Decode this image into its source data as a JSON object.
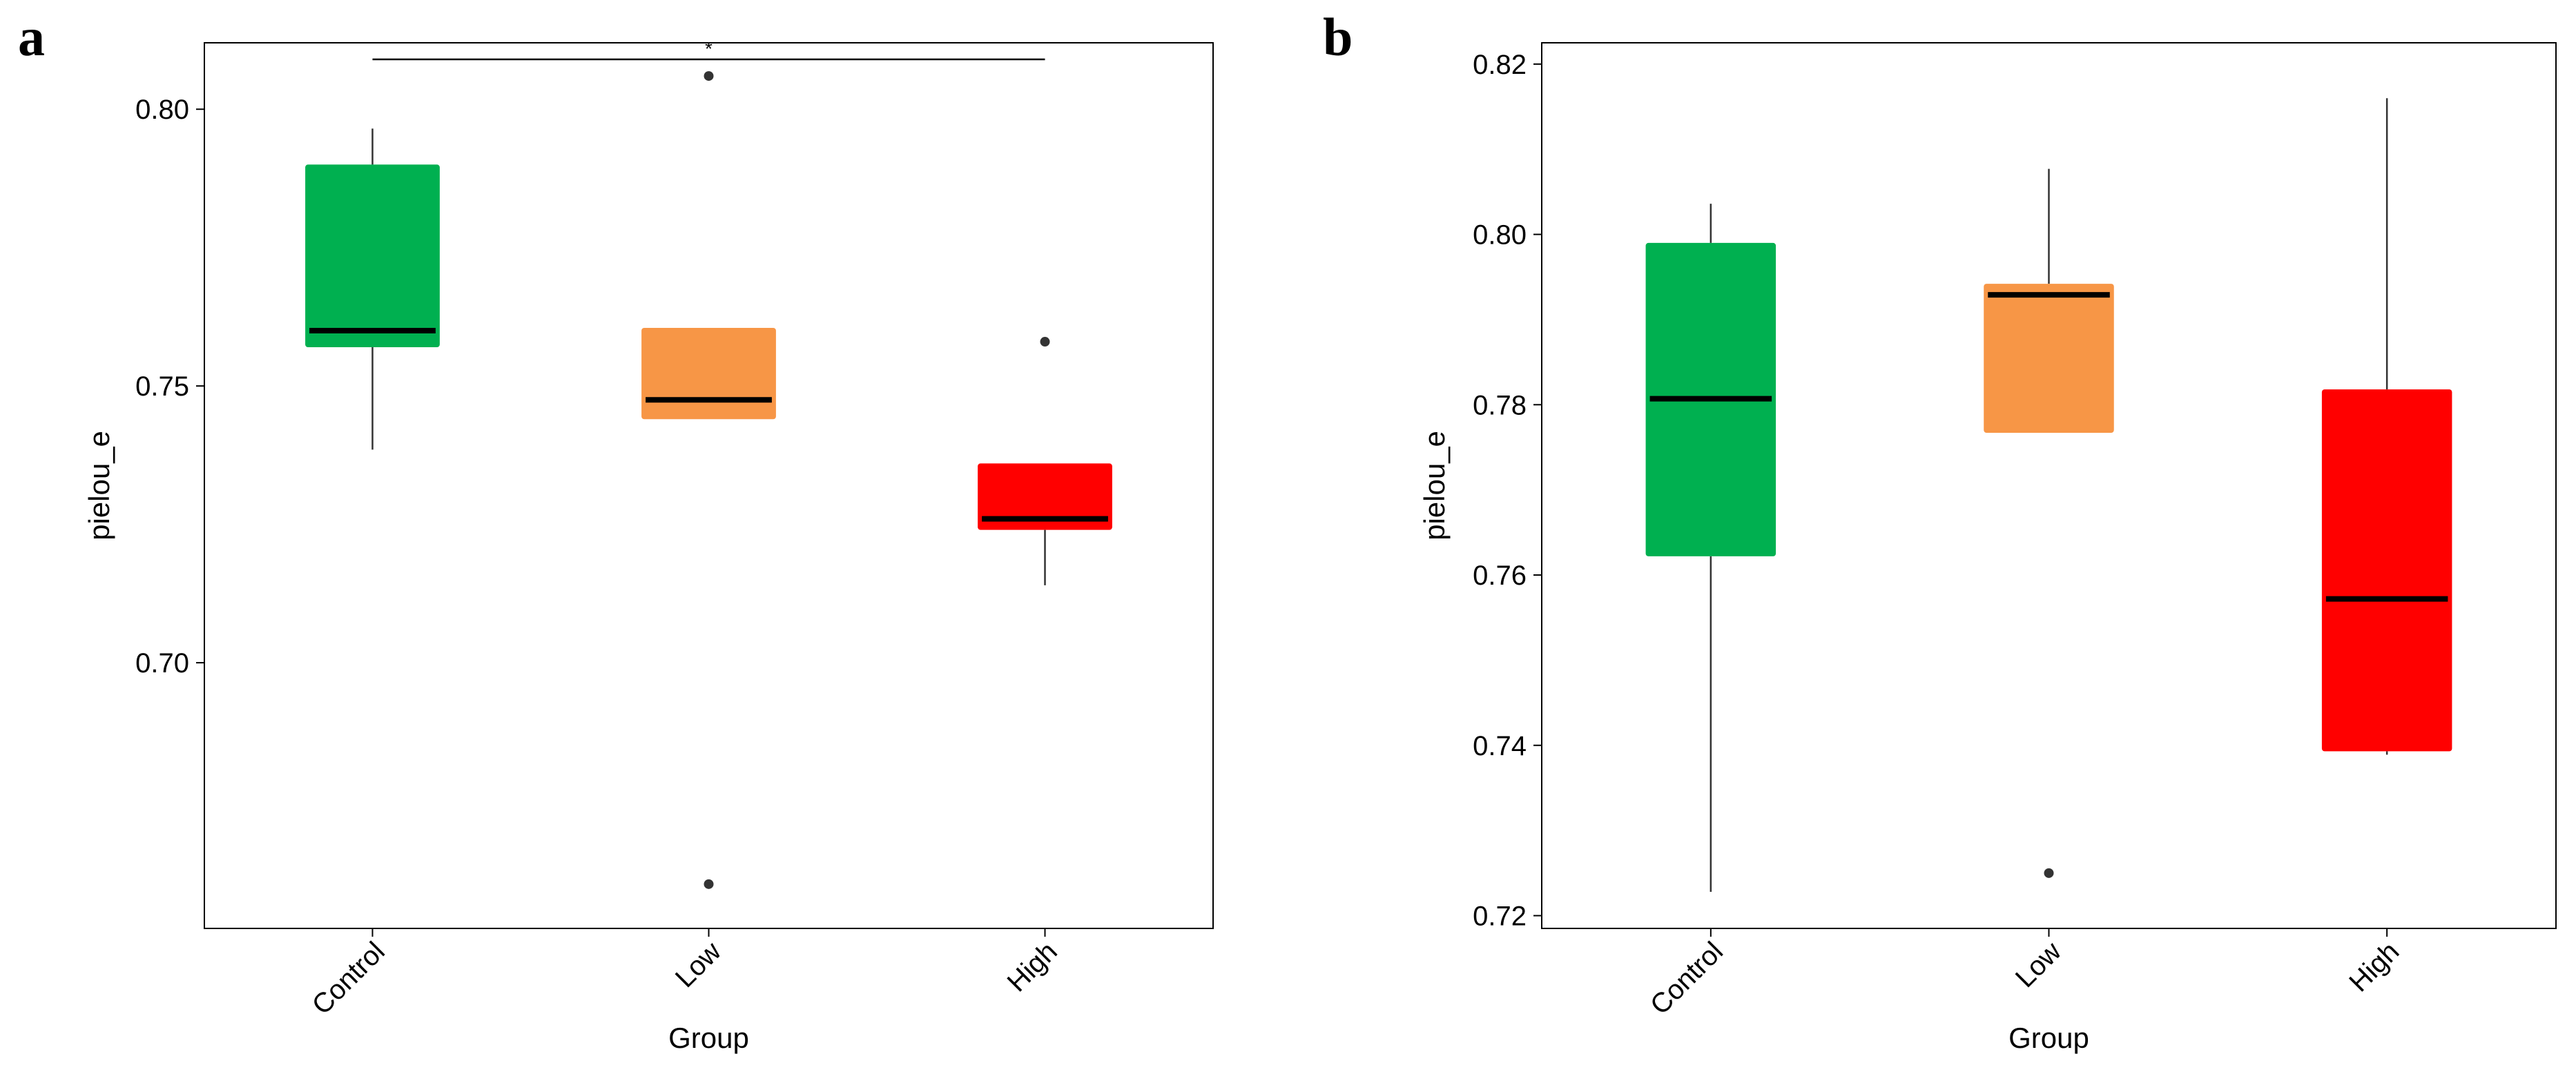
{
  "chart_data": [
    {
      "type": "box",
      "panel_label": "a",
      "xlabel": "Group",
      "ylabel": "pielou_e",
      "categories": [
        "Control",
        "Low",
        "High"
      ],
      "ylim": [
        0.652,
        0.812
      ],
      "yticks": [
        0.7,
        0.75,
        0.8
      ],
      "ytick_labels": [
        "0.70",
        "0.75",
        "0.80"
      ],
      "grid": false,
      "boxes": [
        {
          "group": "Control",
          "color": "#00B050",
          "whisker_low": 0.7385,
          "q1": 0.757,
          "median": 0.76,
          "q3": 0.79,
          "whisker_high": 0.7965,
          "outliers": []
        },
        {
          "group": "Low",
          "color": "#F79646",
          "whisker_low": 0.744,
          "q1": 0.744,
          "median": 0.7475,
          "q3": 0.7605,
          "whisker_high": 0.7605,
          "outliers": [
            0.806,
            0.66
          ]
        },
        {
          "group": "High",
          "color": "#FF0000",
          "whisker_low": 0.714,
          "q1": 0.724,
          "median": 0.726,
          "q3": 0.736,
          "whisker_high": 0.736,
          "outliers": [
            0.758
          ]
        }
      ],
      "significance": [
        {
          "from": "Control",
          "to": "High",
          "label": "*",
          "y": 0.809
        }
      ]
    },
    {
      "type": "box",
      "panel_label": "b",
      "xlabel": "Group",
      "ylabel": "pielou_e",
      "categories": [
        "Control",
        "Low",
        "High"
      ],
      "ylim": [
        0.7185,
        0.8225
      ],
      "yticks": [
        0.72,
        0.74,
        0.76,
        0.78,
        0.8,
        0.82
      ],
      "ytick_labels": [
        "0.72",
        "0.74",
        "0.76",
        "0.78",
        "0.80",
        "0.82"
      ],
      "grid": false,
      "boxes": [
        {
          "group": "Control",
          "color": "#00B050",
          "whisker_low": 0.7228,
          "q1": 0.7622,
          "median": 0.7807,
          "q3": 0.799,
          "whisker_high": 0.8036,
          "outliers": []
        },
        {
          "group": "Low",
          "color": "#F79646",
          "whisker_low": 0.7767,
          "q1": 0.7767,
          "median": 0.7929,
          "q3": 0.7942,
          "whisker_high": 0.8077,
          "outliers": [
            0.725
          ]
        },
        {
          "group": "High",
          "color": "#FF0000",
          "whisker_low": 0.7389,
          "q1": 0.7393,
          "median": 0.7572,
          "q3": 0.7818,
          "whisker_high": 0.816,
          "outliers": []
        }
      ],
      "significance": []
    }
  ]
}
